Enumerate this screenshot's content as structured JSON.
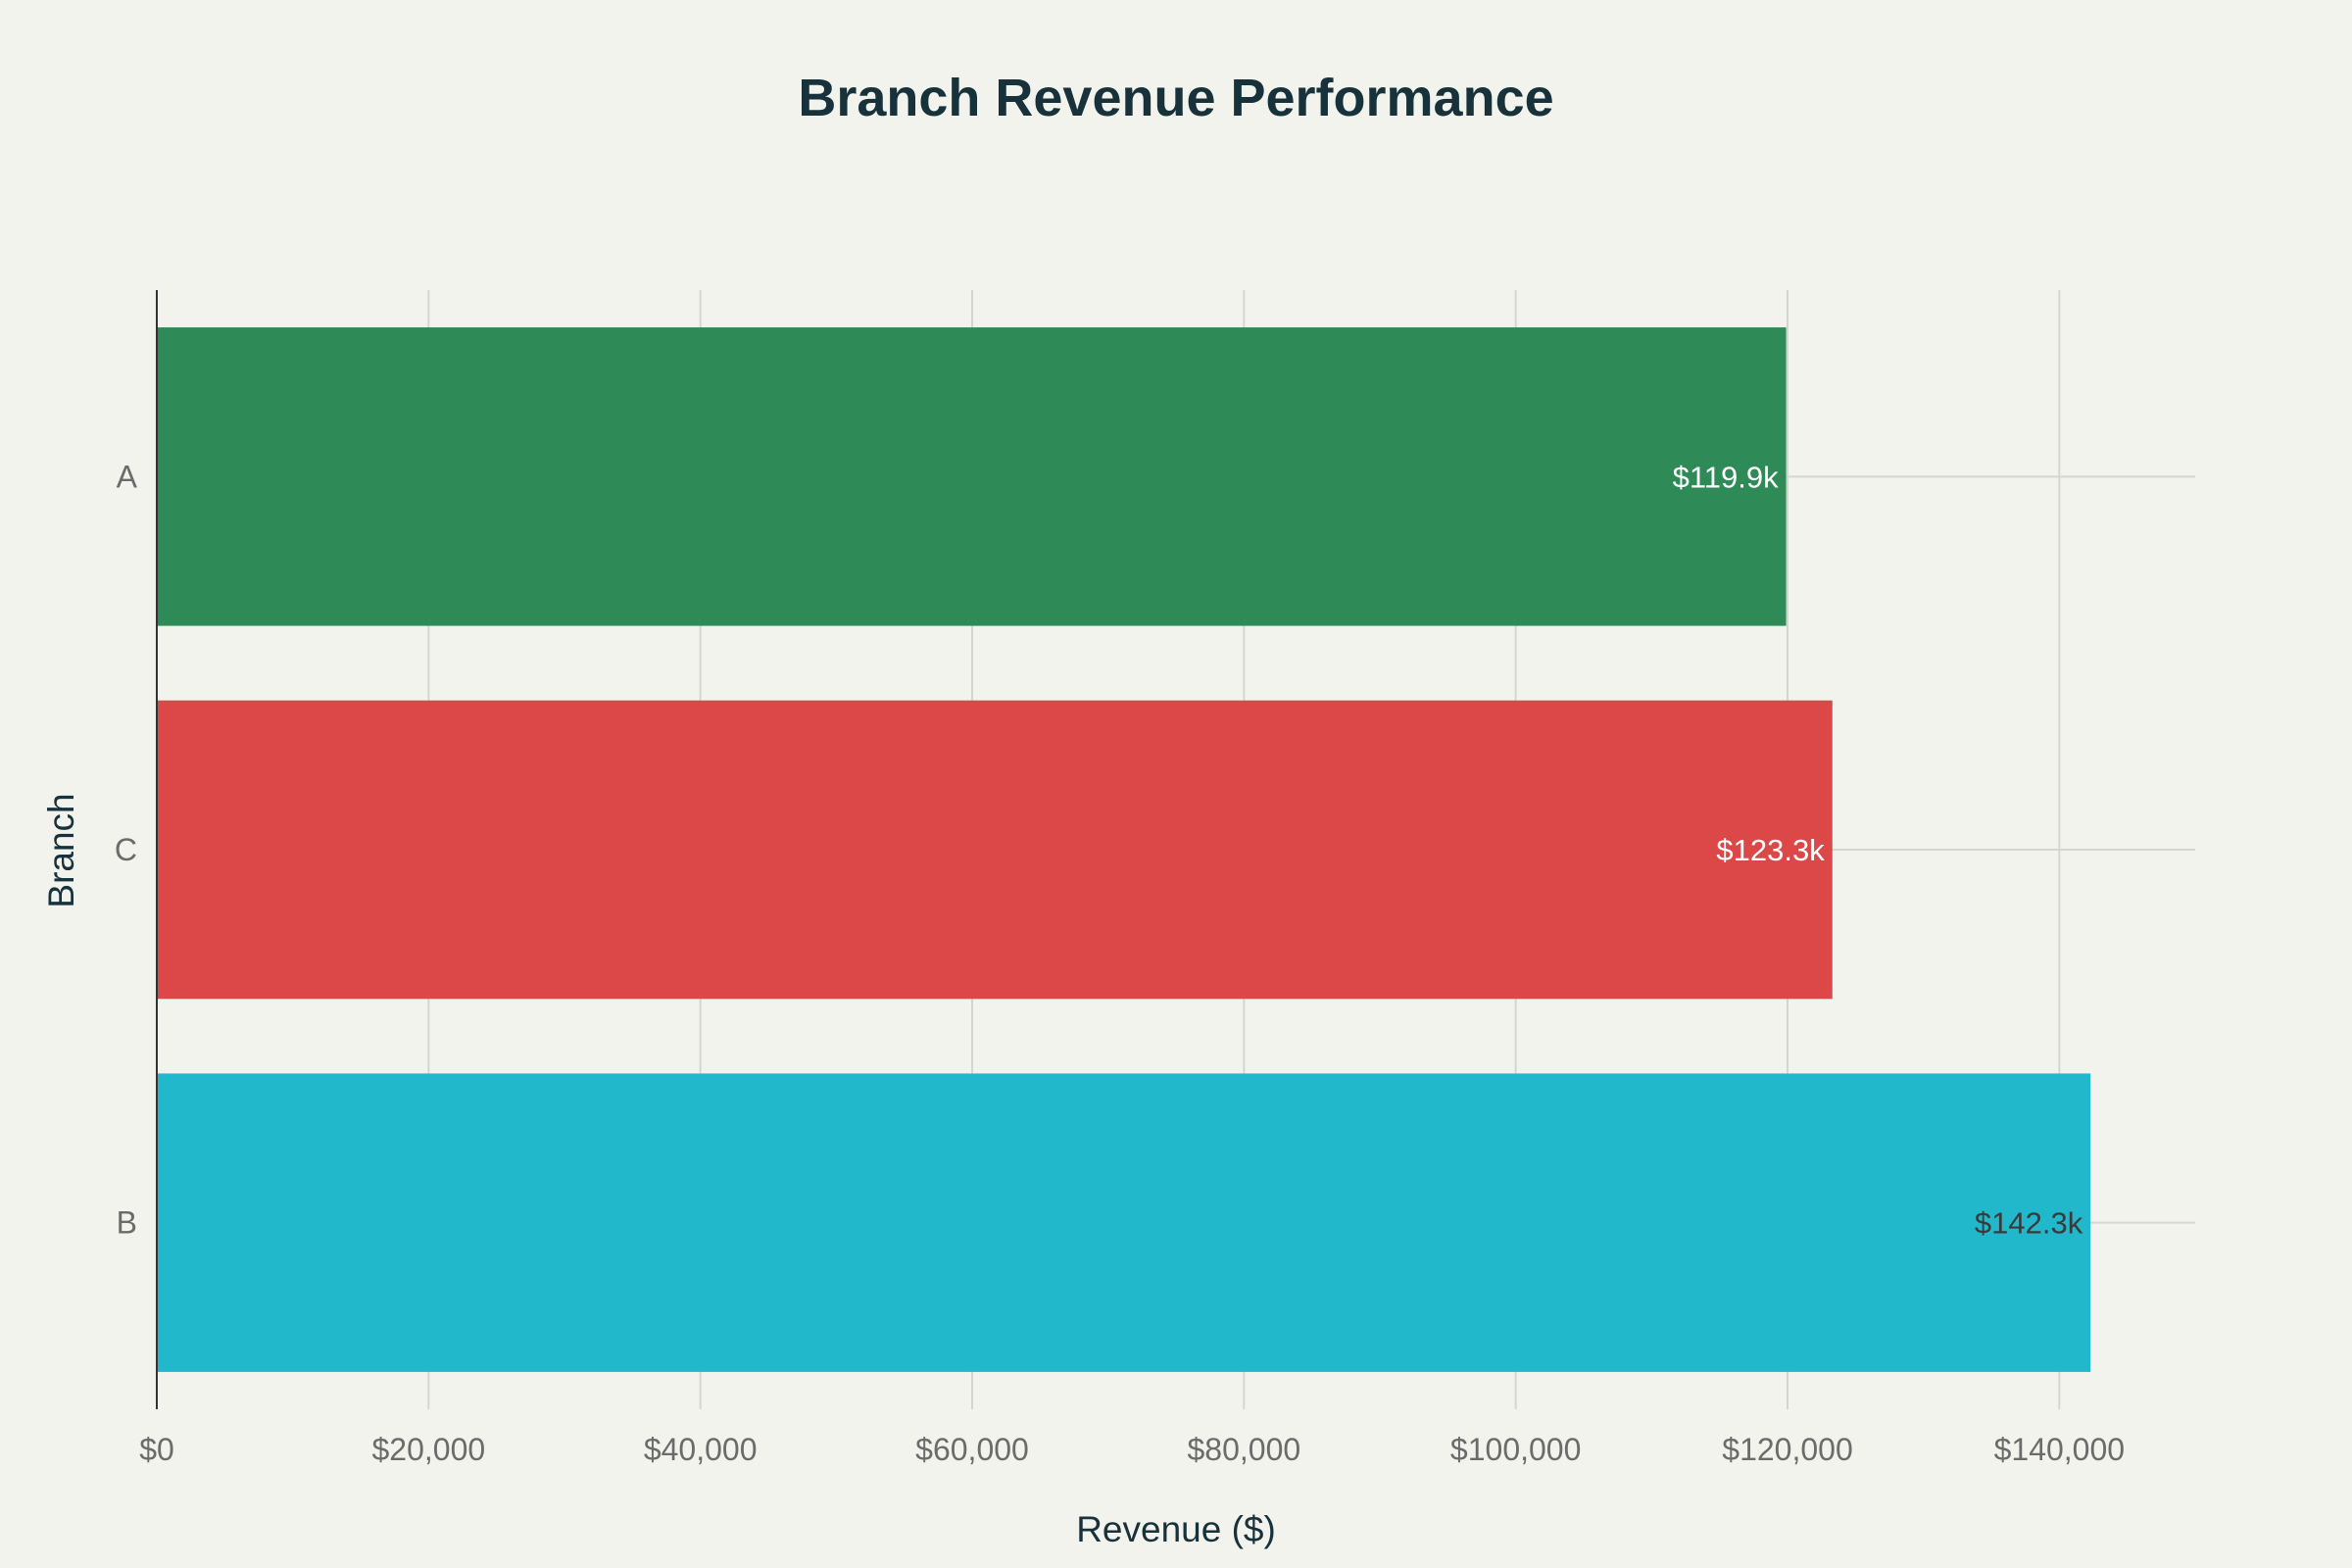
{
  "chart_data": {
    "type": "bar",
    "orientation": "horizontal",
    "title": "Branch Revenue Performance",
    "xlabel": "Revenue ($)",
    "ylabel": "Branch",
    "xlim": [
      0,
      150000
    ],
    "x_ticks": [
      0,
      20000,
      40000,
      60000,
      80000,
      100000,
      120000,
      140000
    ],
    "x_tick_labels": [
      "$0",
      "$20,000",
      "$40,000",
      "$60,000",
      "$80,000",
      "$100,000",
      "$120,000",
      "$140,000"
    ],
    "categories": [
      "A",
      "C",
      "B"
    ],
    "values": [
      119900,
      123300,
      142300
    ],
    "data_labels": [
      "$119.9k",
      "$123.3k",
      "$142.3k"
    ],
    "colors": [
      "#2e8b57",
      "#dc4747",
      "#21b8cc"
    ],
    "label_colors": [
      "#ffffff",
      "#ffffff",
      "#3a3a3a"
    ],
    "grid": true,
    "legend": "none"
  }
}
